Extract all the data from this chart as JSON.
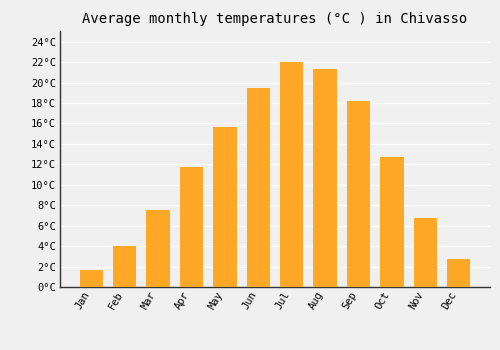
{
  "title": "Average monthly temperatures (°C ) in Chivasso",
  "months": [
    "Jan",
    "Feb",
    "Mar",
    "Apr",
    "May",
    "Jun",
    "Jul",
    "Aug",
    "Sep",
    "Oct",
    "Nov",
    "Dec"
  ],
  "values": [
    1.7,
    4.0,
    7.5,
    11.7,
    15.7,
    19.5,
    22.0,
    21.3,
    18.2,
    12.7,
    6.8,
    2.7
  ],
  "bar_color": "#FFA726",
  "bar_edge_color": "#FFB300",
  "ylim": [
    0,
    25
  ],
  "yticks": [
    0,
    2,
    4,
    6,
    8,
    10,
    12,
    14,
    16,
    18,
    20,
    22,
    24
  ],
  "ytick_labels": [
    "0°C",
    "2°C",
    "4°C",
    "6°C",
    "8°C",
    "10°C",
    "12°C",
    "14°C",
    "16°C",
    "18°C",
    "20°C",
    "22°C",
    "24°C"
  ],
  "bg_color": "#f0f0f0",
  "plot_bg_color": "#f0f0f0",
  "grid_color": "#ffffff",
  "title_fontsize": 10,
  "tick_fontsize": 7.5,
  "font_family": "monospace"
}
